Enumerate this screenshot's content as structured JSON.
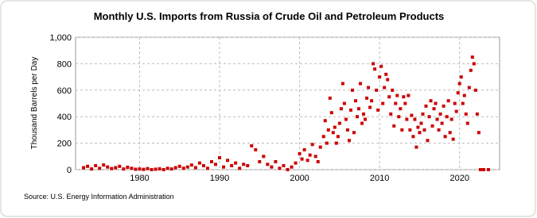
{
  "chart_data": {
    "type": "scatter",
    "title": "Monthly U.S. Imports from Russia of Crude Oil and Petroleum Products",
    "y_label": "Thousand Barrels per Day",
    "source": "Source: U.S. Energy Information Administration",
    "color": "#cc0000",
    "grid": true,
    "xlim": [
      1972,
      2025
    ],
    "xticks": [
      1980,
      1990,
      2000,
      2010,
      2020
    ],
    "ylim": [
      0,
      1000
    ],
    "yticks": [
      0,
      200,
      400,
      600,
      800,
      {
        "value": 1000,
        "label": "1,000"
      }
    ],
    "x": [
      1973.0,
      1973.5,
      1974.0,
      1974.5,
      1975.0,
      1975.5,
      1976.0,
      1976.5,
      1977.0,
      1977.5,
      1978.0,
      1978.5,
      1979.0,
      1979.5,
      1980.0,
      1980.5,
      1981.0,
      1981.5,
      1982.0,
      1982.5,
      1983.0,
      1983.5,
      1984.0,
      1984.5,
      1985.0,
      1985.5,
      1986.0,
      1986.5,
      1987.0,
      1987.5,
      1988.0,
      1988.5,
      1989.0,
      1989.5,
      1990.0,
      1990.5,
      1991.0,
      1991.5,
      1992.0,
      1992.5,
      1993.0,
      1993.5,
      1994.0,
      1994.5,
      1995.0,
      1995.5,
      1996.0,
      1996.5,
      1997.0,
      1997.5,
      1998.0,
      1998.5,
      1999.0,
      1999.5,
      2000.0,
      2000.3,
      2000.6,
      2001.0,
      2001.3,
      2001.6,
      2002.0,
      2002.3,
      2002.6,
      2003.0,
      2003.2,
      2003.4,
      2003.6,
      2003.8,
      2004.0,
      2004.2,
      2004.4,
      2004.6,
      2004.8,
      2005.0,
      2005.2,
      2005.4,
      2005.6,
      2005.8,
      2006.0,
      2006.2,
      2006.4,
      2006.6,
      2006.8,
      2007.0,
      2007.2,
      2007.4,
      2007.6,
      2007.8,
      2008.0,
      2008.2,
      2008.4,
      2008.6,
      2008.8,
      2009.0,
      2009.2,
      2009.4,
      2009.6,
      2009.8,
      2010.0,
      2010.2,
      2010.4,
      2010.6,
      2010.8,
      2011.0,
      2011.2,
      2011.4,
      2011.6,
      2011.8,
      2012.0,
      2012.2,
      2012.4,
      2012.6,
      2012.8,
      2013.0,
      2013.2,
      2013.4,
      2013.6,
      2013.8,
      2014.0,
      2014.2,
      2014.4,
      2014.6,
      2014.8,
      2015.0,
      2015.2,
      2015.4,
      2015.6,
      2015.8,
      2016.0,
      2016.2,
      2016.4,
      2016.6,
      2016.8,
      2017.0,
      2017.2,
      2017.4,
      2017.6,
      2017.8,
      2018.0,
      2018.2,
      2018.4,
      2018.6,
      2018.8,
      2019.0,
      2019.2,
      2019.4,
      2019.6,
      2019.8,
      2020.0,
      2020.2,
      2020.4,
      2020.6,
      2020.8,
      2021.0,
      2021.2,
      2021.4,
      2021.6,
      2021.8,
      2022.0,
      2022.2,
      2022.4,
      2022.6,
      2023.0,
      2023.6
    ],
    "values": [
      15,
      25,
      5,
      30,
      10,
      35,
      20,
      8,
      15,
      25,
      5,
      18,
      10,
      3,
      5,
      2,
      8,
      0,
      3,
      6,
      0,
      10,
      5,
      15,
      25,
      10,
      20,
      35,
      15,
      50,
      30,
      10,
      60,
      40,
      90,
      20,
      70,
      30,
      50,
      10,
      40,
      30,
      180,
      150,
      60,
      100,
      40,
      20,
      60,
      10,
      30,
      0,
      20,
      50,
      120,
      80,
      150,
      70,
      110,
      190,
      100,
      60,
      170,
      250,
      370,
      200,
      300,
      540,
      430,
      280,
      320,
      200,
      250,
      350,
      460,
      650,
      500,
      380,
      300,
      220,
      450,
      600,
      280,
      520,
      400,
      460,
      650,
      350,
      420,
      380,
      540,
      620,
      470,
      520,
      800,
      760,
      600,
      450,
      700,
      780,
      500,
      620,
      720,
      680,
      550,
      420,
      600,
      330,
      500,
      560,
      400,
      460,
      300,
      550,
      500,
      380,
      560,
      300,
      410,
      250,
      380,
      170,
      320,
      280,
      350,
      420,
      300,
      480,
      220,
      400,
      520,
      330,
      460,
      500,
      380,
      300,
      420,
      350,
      480,
      250,
      400,
      520,
      280,
      380,
      230,
      500,
      440,
      580,
      650,
      700,
      500,
      560,
      420,
      350,
      620,
      750,
      850,
      800,
      600,
      420,
      280,
      0,
      0,
      0
    ]
  }
}
